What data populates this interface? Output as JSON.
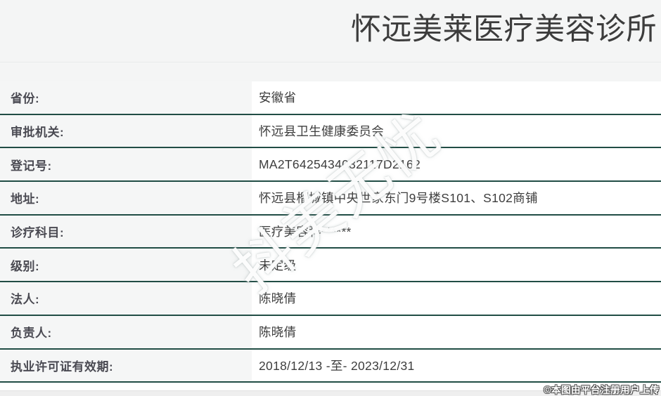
{
  "header": {
    "title": "怀远美莱医疗美容诊所"
  },
  "table": {
    "rows": [
      {
        "label": "省份:",
        "value": "安徽省"
      },
      {
        "label": "审批机关:",
        "value": "怀远县卫生健康委员会"
      },
      {
        "label": "登记号:",
        "value": "MA2T6425434032117D2162"
      },
      {
        "label": "地址:",
        "value": "怀远县榴城镇中央世家东门9号楼S101、S102商铺"
      },
      {
        "label": "诊疗科目:",
        "value": "医疗美容科******"
      },
      {
        "label": "级别:",
        "value": "未定级"
      },
      {
        "label": "法人:",
        "value": "陈晓倩"
      },
      {
        "label": "负责人:",
        "value": "陈晓倩"
      },
      {
        "label": "执业许可证有效期:",
        "value": "2018/12/13 -至- 2023/12/31"
      }
    ]
  },
  "watermarks": {
    "diagonal": "抖美无忧",
    "footer": "©本图由平台注册用户上传"
  },
  "colors": {
    "header_bg": "#f4f5f5",
    "label_column_bg": "#f5f6f6",
    "row_divider_teal": "#214d45",
    "title_text": "#3c3c3c",
    "label_text": "#4a4a52",
    "value_text": "#3d3d3d",
    "footer_band_bg": "#efefef"
  }
}
